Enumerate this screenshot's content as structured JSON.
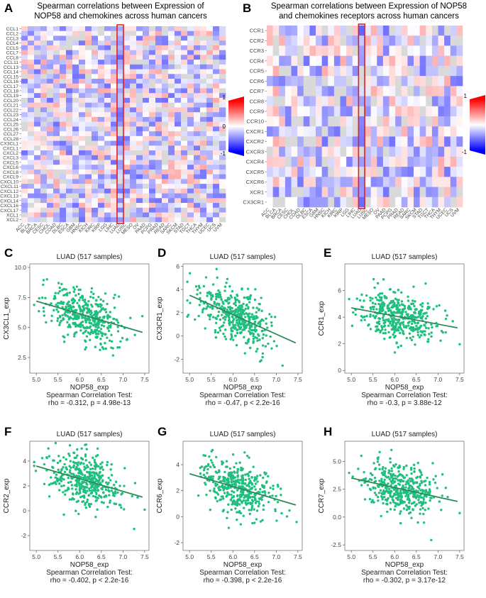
{
  "figure": {
    "panels": {
      "A": {
        "letter": "A",
        "title_line1": "Spearman correlations between Expression of",
        "title_line2": "NOP58 and chemokines across human cancers"
      },
      "B": {
        "letter": "B",
        "title_line1": "Spearman correlations between Expression of NOP58",
        "title_line2": "and chemokines receptors across human cancers"
      },
      "C": {
        "letter": "C"
      },
      "D": {
        "letter": "D"
      },
      "E": {
        "letter": "E"
      },
      "F": {
        "letter": "F"
      },
      "G": {
        "letter": "G"
      },
      "H": {
        "letter": "H"
      }
    },
    "colorbar": {
      "max_label": "1",
      "mid_label": "0",
      "min_label": "-1",
      "colors": {
        "pos": "#ff0000",
        "mid": "#ffffff",
        "neg": "#0000ff"
      }
    },
    "highlight_color": "#e0201c",
    "point_color": "#1fbf7f",
    "line_color": "#2e8b57",
    "scatter_common": {
      "title": "LUAD (517 samples)",
      "xlabel": "NOP58_exp",
      "test_label": "Spearman Correlation Test:"
    }
  },
  "chart_data": [
    {
      "id": "A",
      "type": "heatmap",
      "title": "Spearman correlations between Expression of NOP58 and chemokines across human cancers",
      "columns": [
        "ACC",
        "BLCA",
        "BRCA",
        "CESC",
        "CHOL",
        "COAD",
        "DLBC",
        "ESCA",
        "GBM",
        "HNSC",
        "KICH",
        "KIRC",
        "KIRP",
        "LGG",
        "LIHC",
        "LUAD",
        "LUSC",
        "MESO",
        "OV",
        "PAAD",
        "PCPG",
        "PRAD",
        "READ",
        "SARC",
        "SKCM",
        "STAD",
        "TGCT",
        "THCA",
        "THYM",
        "UCEC",
        "UCS",
        "UVM"
      ],
      "rows": [
        "CCL1",
        "CCL2",
        "CCL3",
        "CCL4",
        "CCL5",
        "CCL7",
        "CCL8",
        "CCL11",
        "CCL13",
        "CCL14",
        "CCL15",
        "CCL16",
        "CCL17",
        "CCL18",
        "CCL19",
        "CCL20",
        "CCL21",
        "CCL22",
        "CCL23",
        "CCL24",
        "CCL25",
        "CCL26",
        "CCL27",
        "CCL28",
        "CX3CL1",
        "CXCL1",
        "CXCL2",
        "CXCL3",
        "CXCL5",
        "CXCL6",
        "CXCL8",
        "CXCL9",
        "CXCL10",
        "CXCL11",
        "CXCL12",
        "CXCL13",
        "CXCL14",
        "CXCL16",
        "CXCL17",
        "XCL1",
        "XCL2"
      ],
      "highlight_column": "LUAD",
      "value_range": [
        -1,
        1
      ]
    },
    {
      "id": "B",
      "type": "heatmap",
      "title": "Spearman correlations between Expression of NOP58 and chemokines receptors across human cancers",
      "columns": [
        "ACC",
        "BLCA",
        "BRCA",
        "CESC",
        "CHOL",
        "COAD",
        "DLBC",
        "ESCA",
        "GBM",
        "HNSC",
        "KICH",
        "KIRC",
        "KIRP",
        "LGG",
        "LIHC",
        "LUAD",
        "LUSC",
        "MESO",
        "OV",
        "PAAD",
        "PCPG",
        "PRAD",
        "READ",
        "SARC",
        "SKCM",
        "STAD",
        "TGCT",
        "THCA",
        "THYM",
        "UCEC",
        "UCS",
        "UVM"
      ],
      "rows": [
        "CCR1",
        "CCR2",
        "CCR3",
        "CCR4",
        "CCR5",
        "CCR6",
        "CCR7",
        "CCR8",
        "CCR9",
        "CCR10",
        "CXCR1",
        "CXCR2",
        "CXCR3",
        "CXCR4",
        "CXCR5",
        "CXCR6",
        "XCR1",
        "CX3CR1"
      ],
      "highlight_column": "LUAD",
      "value_range": [
        -1,
        1
      ]
    },
    {
      "id": "C",
      "type": "scatter",
      "title": "LUAD (517 samples)",
      "xlabel": "NOP58_exp",
      "ylabel": "CX3CL1_exp",
      "xlim": [
        4.85,
        7.6
      ],
      "ylim": [
        1.2,
        10.3
      ],
      "xticks": [
        5.0,
        5.5,
        6.0,
        6.5,
        7.0,
        7.5
      ],
      "yticks": [
        2.5,
        5.0,
        7.5,
        10.0
      ],
      "ytick_labels": [
        "2.5",
        "5.0",
        "7.5",
        "10.0"
      ],
      "fit": {
        "x": [
          5.0,
          7.45
        ],
        "y": [
          7.2,
          4.6
        ]
      },
      "center": [
        6.1,
        6.0
      ],
      "spread": [
        0.42,
        1.4
      ],
      "test": "Spearman Correlation Test:",
      "stat": "rho = -0.312, p = 4.98e-13"
    },
    {
      "id": "D",
      "type": "scatter",
      "title": "LUAD (517 samples)",
      "xlabel": "NOP58_exp",
      "ylabel": "CX3CR1_exp",
      "xlim": [
        4.85,
        7.6
      ],
      "ylim": [
        -3.2,
        6.2
      ],
      "xticks": [
        5.0,
        5.5,
        6.0,
        6.5,
        7.0,
        7.5
      ],
      "yticks": [
        -2,
        0,
        2,
        4,
        6
      ],
      "ytick_labels": [
        "-2",
        "0",
        "2",
        "4",
        "6"
      ],
      "fit": {
        "x": [
          5.0,
          7.45
        ],
        "y": [
          3.5,
          -0.6
        ]
      },
      "center": [
        6.1,
        1.6
      ],
      "spread": [
        0.42,
        1.5
      ],
      "test": "Spearman Correlation Test:",
      "stat": "rho = -0.47, p < 2.2e-16"
    },
    {
      "id": "E",
      "type": "scatter",
      "title": "LUAD (517 samples)",
      "xlabel": "NOP58_exp",
      "ylabel": "CCR1_exp",
      "xlim": [
        4.85,
        7.6
      ],
      "ylim": [
        -0.2,
        8.0
      ],
      "xticks": [
        5.0,
        5.5,
        6.0,
        6.5,
        7.0,
        7.5
      ],
      "yticks": [
        0,
        2,
        4,
        6
      ],
      "ytick_labels": [
        "0",
        "2",
        "4",
        "6"
      ],
      "fit": {
        "x": [
          5.0,
          7.45
        ],
        "y": [
          4.7,
          3.2
        ]
      },
      "center": [
        6.1,
        3.8
      ],
      "spread": [
        0.42,
        1.2
      ],
      "test": "Spearman Correlation Test:",
      "stat": "rho = -0.3, p = 3.88e-12"
    },
    {
      "id": "F",
      "type": "scatter",
      "title": "LUAD (517 samples)",
      "xlabel": "NOP58_exp",
      "ylabel": "CCR2_exp",
      "xlim": [
        4.85,
        7.6
      ],
      "ylim": [
        -3.2,
        5.6
      ],
      "xticks": [
        5.0,
        5.5,
        6.0,
        6.5,
        7.0,
        7.5
      ],
      "yticks": [
        -2,
        0,
        2,
        4
      ],
      "ytick_labels": [
        "-2",
        "0",
        "2",
        "4"
      ],
      "fit": {
        "x": [
          5.0,
          7.45
        ],
        "y": [
          3.6,
          1.1
        ]
      },
      "center": [
        6.1,
        2.4
      ],
      "spread": [
        0.42,
        1.4
      ],
      "test": "Spearman Correlation Test:",
      "stat": "rho = -0.402, p < 2.2e-16"
    },
    {
      "id": "G",
      "type": "scatter",
      "title": "LUAD (517 samples)",
      "xlabel": "NOP58_exp",
      "ylabel": "CCR6_exp",
      "xlim": [
        4.85,
        7.6
      ],
      "ylim": [
        -2.6,
        5.8
      ],
      "xticks": [
        5.0,
        5.5,
        6.0,
        6.5,
        7.0,
        7.5
      ],
      "yticks": [
        -2,
        0,
        2,
        4
      ],
      "ytick_labels": [
        "-2",
        "0",
        "2",
        "4"
      ],
      "fit": {
        "x": [
          5.0,
          7.45
        ],
        "y": [
          3.3,
          0.9
        ]
      },
      "center": [
        6.1,
        2.0
      ],
      "spread": [
        0.42,
        1.4
      ],
      "test": "Spearman Correlation Test:",
      "stat": "rho = -0.398, p < 2.2e-16"
    },
    {
      "id": "H",
      "type": "scatter",
      "title": "LUAD (517 samples)",
      "xlabel": "NOP58_exp",
      "ylabel": "CCR7_exp",
      "xlim": [
        4.85,
        7.6
      ],
      "ylim": [
        -3.0,
        6.8
      ],
      "xticks": [
        5.0,
        5.5,
        6.0,
        6.5,
        7.0,
        7.5
      ],
      "yticks": [
        -2.5,
        0.0,
        2.5,
        5.0
      ],
      "ytick_labels": [
        "-2.5",
        "0.0",
        "2.5",
        "5.0"
      ],
      "fit": {
        "x": [
          5.0,
          7.45
        ],
        "y": [
          3.5,
          1.4
        ]
      },
      "center": [
        6.1,
        2.5
      ],
      "spread": [
        0.42,
        1.5
      ],
      "test": "Spearman Correlation Test:",
      "stat": "rho = -0.302, p = 3.17e-12"
    }
  ]
}
